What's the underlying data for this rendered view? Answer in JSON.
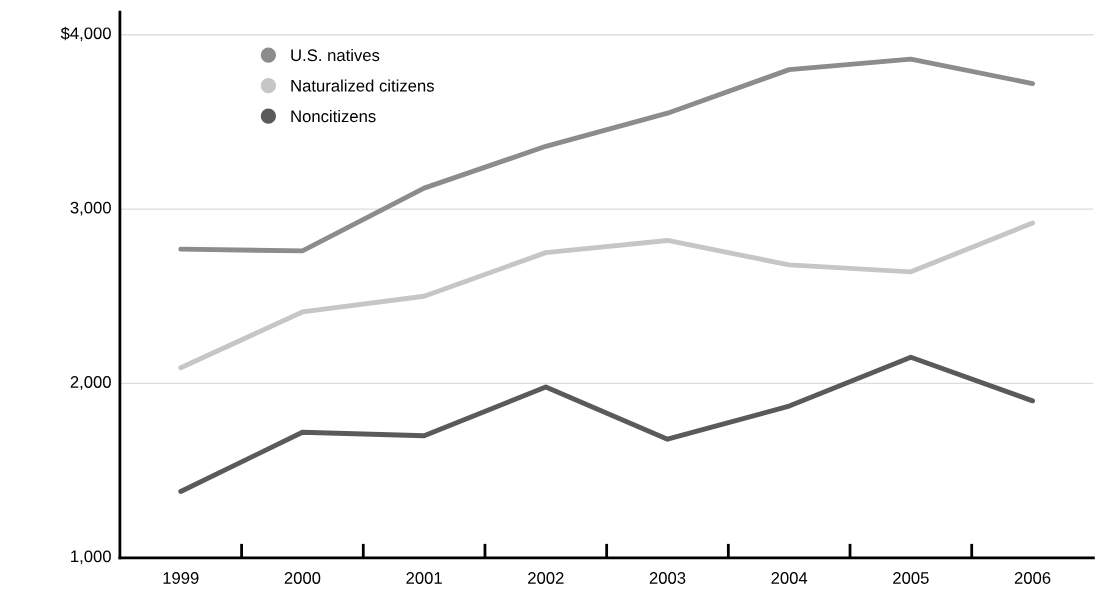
{
  "chart_data": {
    "type": "line",
    "categories": [
      "1999",
      "2000",
      "2001",
      "2002",
      "2003",
      "2004",
      "2005",
      "2006"
    ],
    "series": [
      {
        "name": "U.S. natives",
        "color": "#8c8c8c",
        "values": [
          2770,
          2760,
          3120,
          3360,
          3550,
          3800,
          3860,
          3720
        ]
      },
      {
        "name": "Naturalized citizens",
        "color": "#c6c6c6",
        "values": [
          2090,
          2410,
          2500,
          2750,
          2820,
          2680,
          2640,
          2920
        ]
      },
      {
        "name": "Noncitizens",
        "color": "#5a5a5a",
        "values": [
          1380,
          1720,
          1700,
          1980,
          1680,
          1870,
          2150,
          1900
        ]
      }
    ],
    "ylim": [
      1000,
      4130
    ],
    "yticks": [
      {
        "value": 1000,
        "label": "1,000"
      },
      {
        "value": 2000,
        "label": "2,000"
      },
      {
        "value": 3000,
        "label": "3,000"
      },
      {
        "value": 4000,
        "label": "$4,000"
      }
    ],
    "grid": "y",
    "legend": "top left",
    "line_style": "solid"
  }
}
